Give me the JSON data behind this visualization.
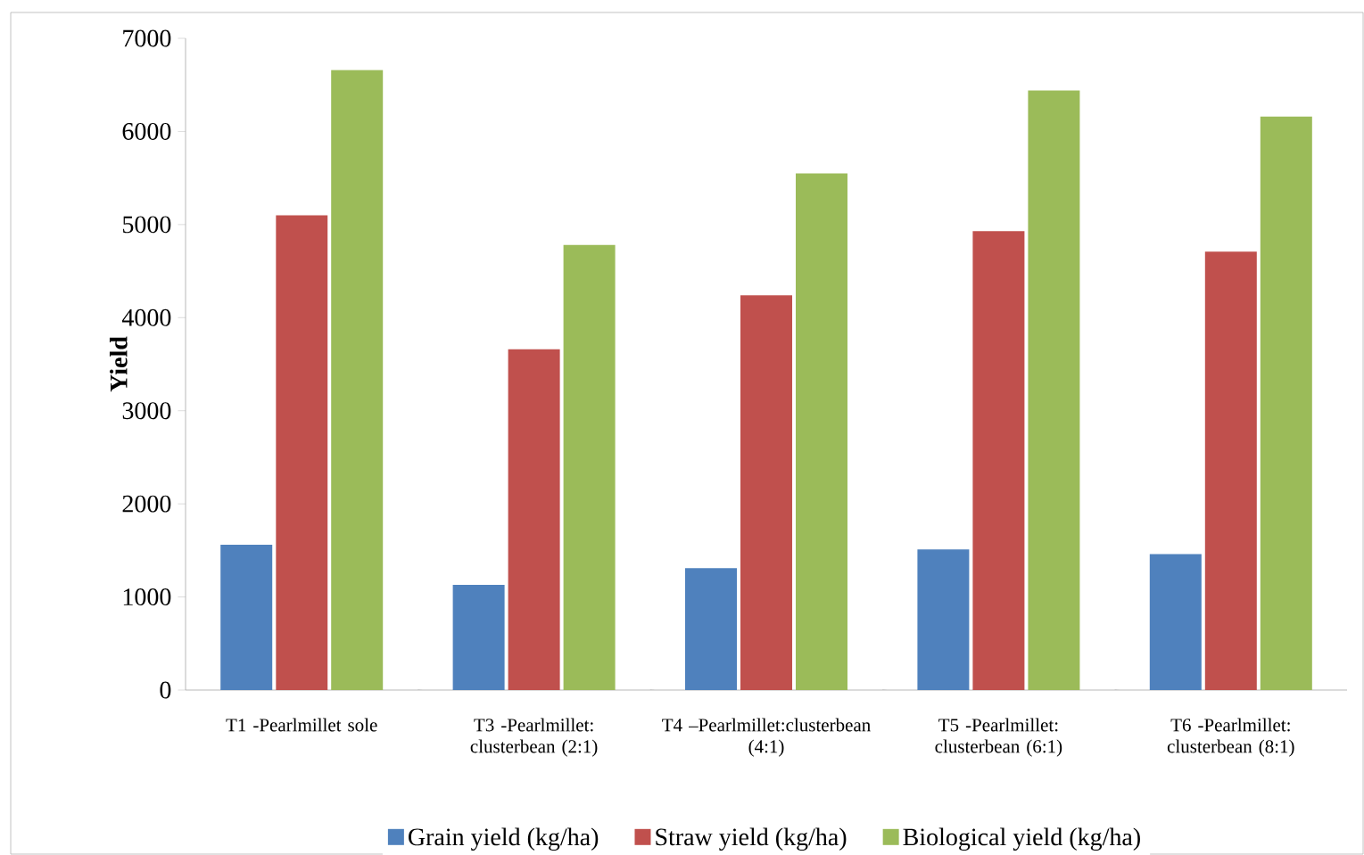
{
  "chart_data": {
    "type": "bar",
    "ylabel": "Yield",
    "categories": [
      "T1 -Pearlmillet sole",
      "T3 -Pearlmillet: clusterbean (2:1)",
      "T4 –Pearlmillet:clusterbean (4:1)",
      "T5 -Pearlmillet: clusterbean (6:1)",
      "T6 -Pearlmillet: clusterbean (8:1)"
    ],
    "series": [
      {
        "name": "Grain yield (kg/ha)",
        "color": "#4f81bd",
        "values": [
          1560,
          1130,
          1310,
          1510,
          1460
        ]
      },
      {
        "name": "Straw yield (kg/ha)",
        "color": "#c0504d",
        "values": [
          5100,
          3660,
          4240,
          4930,
          4710
        ]
      },
      {
        "name": "Biological yield (kg/ha)",
        "color": "#9bbb59",
        "values": [
          6660,
          4780,
          5550,
          6440,
          6160
        ]
      }
    ],
    "ylim": [
      0,
      7000
    ],
    "yticks": [
      0,
      1000,
      2000,
      3000,
      4000,
      5000,
      6000,
      7000
    ],
    "grid": false,
    "legend": "bottom"
  }
}
